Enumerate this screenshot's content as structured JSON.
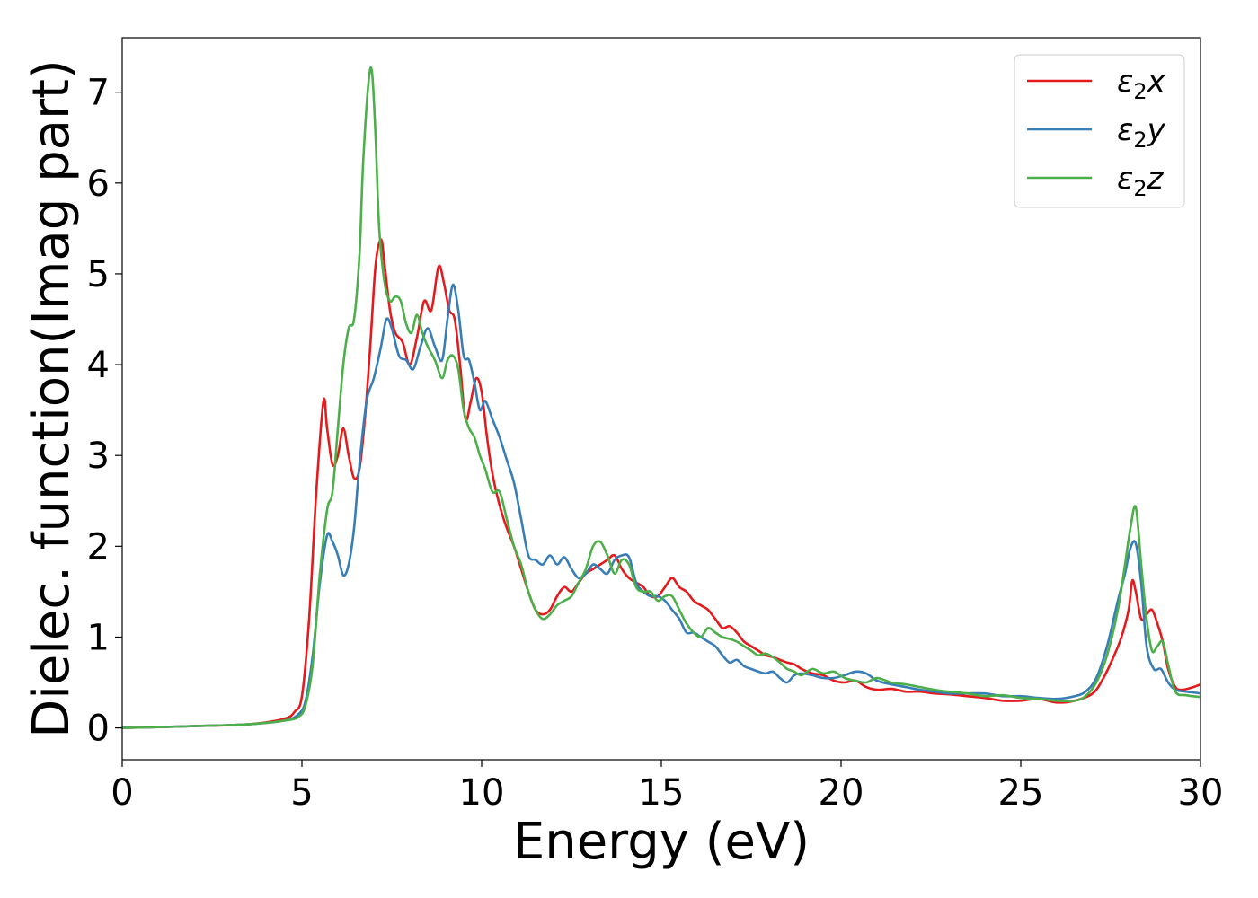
{
  "chart_data": {
    "type": "line",
    "xlabel": "Energy (eV)",
    "ylabel": "Dielec. function(Imag part)",
    "xlim": [
      0,
      30
    ],
    "ylim": [
      -0.35,
      7.6
    ],
    "xticks": [
      0,
      5,
      10,
      15,
      20,
      25,
      30
    ],
    "yticks": [
      0,
      1,
      2,
      3,
      4,
      5,
      6,
      7
    ],
    "grid": false,
    "legend_position": "top-right",
    "series": [
      {
        "name": "ε2x",
        "legend_main": "ε",
        "legend_sub": "2",
        "legend_var": "x",
        "color": "#e41a1c",
        "x": [
          0,
          2,
          3.5,
          4.5,
          4.8,
          5.0,
          5.2,
          5.4,
          5.6,
          5.7,
          5.85,
          6.0,
          6.15,
          6.3,
          6.45,
          6.6,
          6.75,
          6.9,
          7.05,
          7.2,
          7.3,
          7.45,
          7.6,
          7.8,
          8.0,
          8.2,
          8.4,
          8.6,
          8.8,
          8.95,
          9.1,
          9.25,
          9.4,
          9.55,
          9.7,
          9.85,
          10.0,
          10.15,
          10.3,
          10.5,
          10.7,
          10.9,
          11.1,
          11.3,
          11.5,
          11.7,
          11.9,
          12.1,
          12.3,
          12.5,
          12.7,
          12.9,
          13.1,
          13.3,
          13.5,
          13.7,
          13.9,
          14.1,
          14.3,
          14.5,
          14.7,
          14.9,
          15.1,
          15.3,
          15.5,
          15.7,
          15.9,
          16.1,
          16.3,
          16.5,
          16.7,
          16.9,
          17.1,
          17.3,
          17.5,
          17.7,
          17.9,
          18.1,
          18.3,
          18.5,
          18.7,
          18.9,
          19.2,
          19.5,
          19.8,
          20.1,
          20.4,
          20.7,
          21.0,
          21.4,
          21.8,
          22.2,
          22.6,
          23.0,
          23.5,
          24.0,
          24.5,
          25.0,
          25.5,
          26.0,
          26.5,
          27.0,
          27.3,
          27.6,
          27.8,
          28.0,
          28.1,
          28.2,
          28.35,
          28.5,
          28.65,
          28.8,
          28.95,
          29.1,
          29.3,
          29.5,
          29.8,
          30.0
        ],
        "y": [
          0.0,
          0.02,
          0.04,
          0.1,
          0.18,
          0.35,
          1.2,
          2.6,
          3.6,
          3.3,
          2.9,
          3.0,
          3.3,
          3.0,
          2.75,
          2.85,
          3.4,
          4.2,
          5.1,
          5.38,
          5.1,
          4.6,
          4.35,
          4.25,
          4.0,
          4.3,
          4.7,
          4.6,
          5.08,
          4.9,
          4.6,
          4.5,
          4.0,
          3.4,
          3.6,
          3.85,
          3.7,
          3.2,
          2.8,
          2.45,
          2.2,
          2.0,
          1.75,
          1.5,
          1.3,
          1.25,
          1.3,
          1.45,
          1.55,
          1.5,
          1.6,
          1.7,
          1.75,
          1.8,
          1.85,
          1.9,
          1.75,
          1.65,
          1.6,
          1.55,
          1.45,
          1.45,
          1.55,
          1.65,
          1.55,
          1.5,
          1.4,
          1.35,
          1.3,
          1.2,
          1.1,
          1.12,
          1.05,
          0.95,
          0.9,
          0.85,
          0.8,
          0.78,
          0.75,
          0.72,
          0.7,
          0.65,
          0.6,
          0.58,
          0.52,
          0.5,
          0.52,
          0.45,
          0.42,
          0.43,
          0.4,
          0.4,
          0.38,
          0.37,
          0.35,
          0.33,
          0.3,
          0.3,
          0.32,
          0.28,
          0.3,
          0.38,
          0.55,
          0.8,
          1.0,
          1.3,
          1.62,
          1.5,
          1.2,
          1.25,
          1.3,
          1.15,
          0.95,
          0.65,
          0.45,
          0.42,
          0.45,
          0.48
        ]
      },
      {
        "name": "ε2y",
        "legend_main": "ε",
        "legend_sub": "2",
        "legend_var": "y",
        "color": "#377eb8",
        "x": [
          0,
          2,
          3.5,
          4.5,
          4.9,
          5.1,
          5.3,
          5.5,
          5.7,
          5.85,
          6.0,
          6.15,
          6.3,
          6.45,
          6.6,
          6.8,
          7.0,
          7.2,
          7.35,
          7.5,
          7.7,
          7.9,
          8.1,
          8.3,
          8.5,
          8.7,
          8.9,
          9.05,
          9.2,
          9.35,
          9.5,
          9.65,
          9.8,
          9.95,
          10.1,
          10.3,
          10.5,
          10.7,
          10.9,
          11.1,
          11.3,
          11.5,
          11.7,
          11.9,
          12.1,
          12.3,
          12.5,
          12.7,
          12.9,
          13.1,
          13.3,
          13.5,
          13.7,
          13.9,
          14.1,
          14.3,
          14.5,
          14.7,
          14.9,
          15.1,
          15.3,
          15.5,
          15.7,
          15.9,
          16.1,
          16.3,
          16.5,
          16.7,
          16.9,
          17.1,
          17.3,
          17.5,
          17.7,
          17.9,
          18.1,
          18.3,
          18.5,
          18.7,
          18.9,
          19.2,
          19.5,
          19.8,
          20.1,
          20.4,
          20.7,
          21.0,
          21.4,
          21.8,
          22.2,
          22.6,
          23.0,
          23.5,
          24.0,
          24.5,
          25.0,
          25.5,
          26.0,
          26.5,
          26.8,
          27.1,
          27.4,
          27.7,
          27.9,
          28.05,
          28.2,
          28.35,
          28.5,
          28.7,
          28.9,
          29.1,
          29.3,
          29.6,
          30.0
        ],
        "y": [
          0.0,
          0.02,
          0.04,
          0.08,
          0.15,
          0.3,
          0.8,
          1.6,
          2.12,
          2.05,
          1.9,
          1.68,
          1.8,
          2.2,
          2.9,
          3.6,
          3.85,
          4.2,
          4.5,
          4.4,
          4.1,
          4.05,
          3.95,
          4.2,
          4.4,
          4.2,
          4.05,
          4.5,
          4.88,
          4.6,
          4.1,
          4.05,
          3.8,
          3.5,
          3.6,
          3.4,
          3.2,
          2.95,
          2.7,
          2.3,
          1.9,
          1.85,
          1.8,
          1.9,
          1.8,
          1.88,
          1.75,
          1.65,
          1.7,
          1.8,
          1.75,
          1.7,
          1.85,
          1.9,
          1.88,
          1.6,
          1.5,
          1.45,
          1.45,
          1.4,
          1.3,
          1.2,
          1.05,
          1.05,
          1.0,
          0.95,
          0.9,
          0.8,
          0.72,
          0.75,
          0.68,
          0.65,
          0.62,
          0.6,
          0.62,
          0.55,
          0.5,
          0.58,
          0.6,
          0.58,
          0.55,
          0.55,
          0.58,
          0.62,
          0.6,
          0.52,
          0.48,
          0.45,
          0.42,
          0.4,
          0.38,
          0.38,
          0.38,
          0.35,
          0.35,
          0.33,
          0.32,
          0.35,
          0.4,
          0.55,
          0.9,
          1.4,
          1.7,
          1.98,
          2.03,
          1.6,
          0.9,
          0.65,
          0.65,
          0.5,
          0.42,
          0.4,
          0.38
        ]
      },
      {
        "name": "ε2z",
        "legend_main": "ε",
        "legend_sub": "2",
        "legend_var": "z",
        "color": "#4daf4a",
        "x": [
          0,
          2,
          3.5,
          4.5,
          4.9,
          5.1,
          5.3,
          5.5,
          5.7,
          5.85,
          6.0,
          6.15,
          6.3,
          6.45,
          6.6,
          6.7,
          6.85,
          6.95,
          7.05,
          7.15,
          7.3,
          7.45,
          7.6,
          7.75,
          7.9,
          8.05,
          8.2,
          8.35,
          8.5,
          8.7,
          8.9,
          9.05,
          9.2,
          9.35,
          9.5,
          9.65,
          9.8,
          9.95,
          10.1,
          10.3,
          10.5,
          10.7,
          10.9,
          11.1,
          11.3,
          11.5,
          11.7,
          11.9,
          12.1,
          12.3,
          12.5,
          12.7,
          12.9,
          13.1,
          13.3,
          13.5,
          13.7,
          13.9,
          14.1,
          14.3,
          14.5,
          14.7,
          14.9,
          15.1,
          15.3,
          15.5,
          15.7,
          15.9,
          16.1,
          16.3,
          16.5,
          16.7,
          16.9,
          17.1,
          17.3,
          17.5,
          17.7,
          17.9,
          18.1,
          18.3,
          18.5,
          18.7,
          18.9,
          19.2,
          19.5,
          19.8,
          20.1,
          20.4,
          20.7,
          21.0,
          21.4,
          21.8,
          22.2,
          22.6,
          23.0,
          23.5,
          24.0,
          24.5,
          25.0,
          25.5,
          26.0,
          26.5,
          26.8,
          27.1,
          27.4,
          27.7,
          27.9,
          28.05,
          28.2,
          28.35,
          28.5,
          28.65,
          28.8,
          28.95,
          29.1,
          29.3,
          29.6,
          30.0
        ],
        "y": [
          0.0,
          0.02,
          0.04,
          0.08,
          0.12,
          0.25,
          0.7,
          1.7,
          2.4,
          2.6,
          3.3,
          4.0,
          4.4,
          4.5,
          5.2,
          6.2,
          7.1,
          7.22,
          6.5,
          5.5,
          4.9,
          4.7,
          4.75,
          4.7,
          4.45,
          4.35,
          4.55,
          4.35,
          4.2,
          4.05,
          3.85,
          4.05,
          4.1,
          3.95,
          3.5,
          3.3,
          3.2,
          3.0,
          2.85,
          2.6,
          2.6,
          2.3,
          2.0,
          1.8,
          1.5,
          1.3,
          1.2,
          1.25,
          1.35,
          1.4,
          1.45,
          1.6,
          1.75,
          2.0,
          2.05,
          1.9,
          1.7,
          1.85,
          1.8,
          1.55,
          1.5,
          1.5,
          1.4,
          1.45,
          1.45,
          1.3,
          1.15,
          1.05,
          1.0,
          1.1,
          1.05,
          1.0,
          0.98,
          0.95,
          0.9,
          0.85,
          0.8,
          0.82,
          0.78,
          0.72,
          0.65,
          0.62,
          0.58,
          0.65,
          0.6,
          0.62,
          0.55,
          0.52,
          0.5,
          0.55,
          0.5,
          0.48,
          0.45,
          0.42,
          0.4,
          0.38,
          0.35,
          0.36,
          0.33,
          0.32,
          0.3,
          0.3,
          0.35,
          0.5,
          0.8,
          1.3,
          1.8,
          2.2,
          2.43,
          1.8,
          1.2,
          0.85,
          0.9,
          0.95,
          0.7,
          0.4,
          0.36,
          0.34
        ]
      }
    ]
  }
}
